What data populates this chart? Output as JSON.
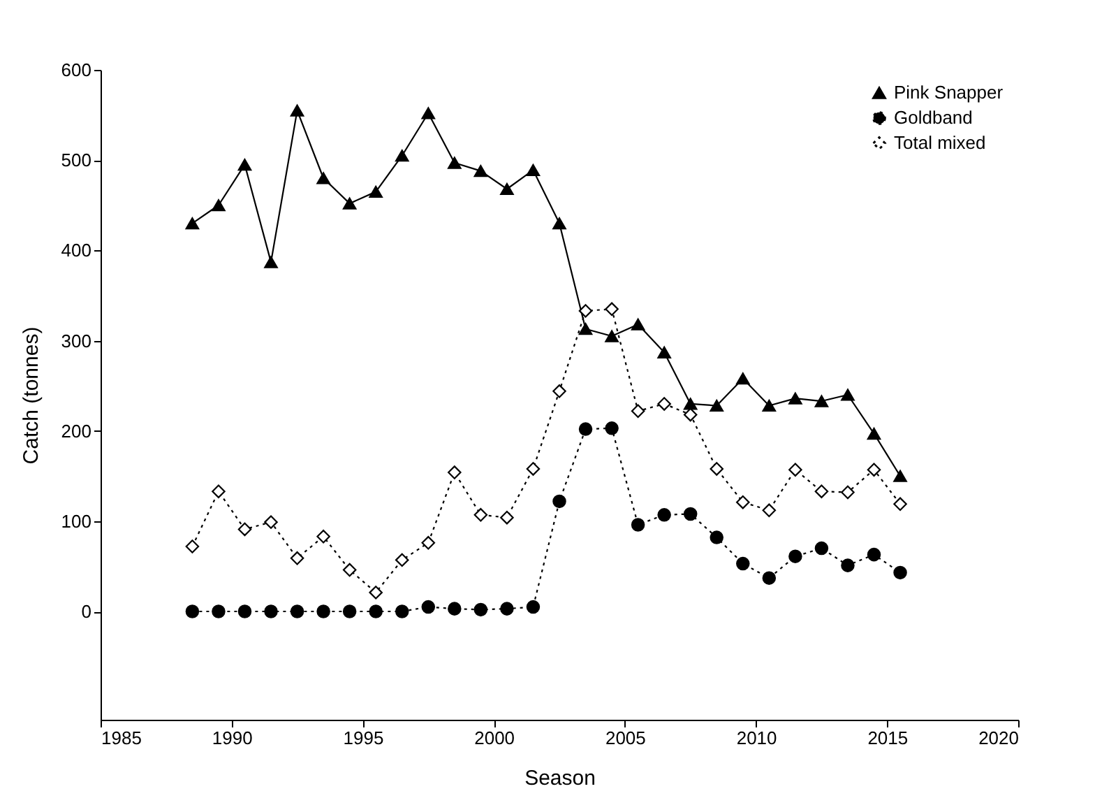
{
  "chart_data": {
    "type": "line",
    "xlabel": "Season",
    "ylabel": "Catch (tonnes)",
    "xlim": [
      1985,
      2020
    ],
    "xticks": [
      1985,
      1990,
      1995,
      2000,
      2005,
      2010,
      2015,
      2020
    ],
    "ylim": [
      -120,
      600
    ],
    "yticks": [
      0,
      100,
      200,
      300,
      400,
      500,
      600
    ],
    "grid": false,
    "legend": "top right",
    "x": [
      1988.5,
      1989.5,
      1990.5,
      1991.5,
      1992.5,
      1993.5,
      1994.5,
      1995.5,
      1996.5,
      1997.5,
      1998.5,
      1999.5,
      2000.5,
      2001.5,
      2002.5,
      2003.5,
      2004.5,
      2005.5,
      2006.5,
      2007.5,
      2008.5,
      2009.5,
      2010.5,
      2011.5,
      2012.5,
      2013.5,
      2014.5,
      2015.5
    ],
    "series": [
      {
        "name": "Pink Snapper",
        "color": "#000000",
        "marker": "triangle",
        "line_style": "solid",
        "values": [
          430,
          450,
          495,
          387,
          555,
          480,
          452,
          465,
          505,
          552,
          497,
          488,
          468,
          489,
          430,
          313,
          305,
          318,
          287,
          230,
          228,
          258,
          228,
          236,
          233,
          240,
          197,
          150
        ]
      },
      {
        "name": "Goldband",
        "color": "#000000",
        "marker": "circle",
        "line_style": "dotted",
        "values": [
          0,
          0,
          0,
          0,
          0,
          0,
          0,
          0,
          0,
          5,
          3,
          2,
          3,
          5,
          122,
          202,
          203,
          96,
          107,
          108,
          82,
          53,
          37,
          61,
          70,
          51,
          63,
          43
        ]
      },
      {
        "name": "Total mixed",
        "color": "#000000",
        "marker": "diamond",
        "line_style": "dotted",
        "values": [
          72,
          133,
          91,
          99,
          59,
          83,
          46,
          21,
          57,
          76,
          154,
          107,
          104,
          158,
          244,
          333,
          335,
          222,
          230,
          218,
          158,
          121,
          112,
          157,
          133,
          132,
          157,
          119
        ]
      }
    ]
  }
}
